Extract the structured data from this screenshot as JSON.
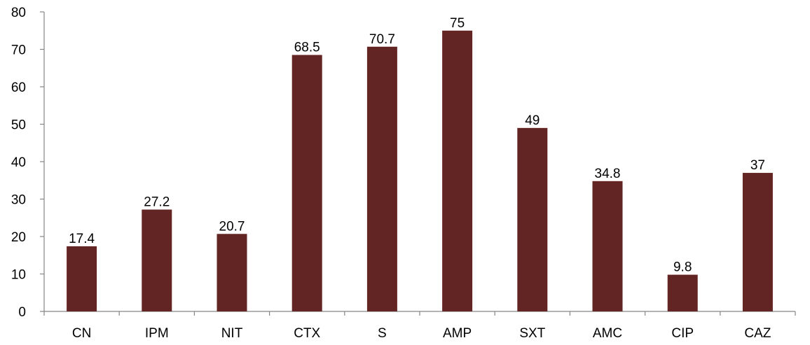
{
  "chart_data": {
    "type": "bar",
    "title": "",
    "xlabel": "",
    "ylabel": "",
    "categories": [
      "CN",
      "IPM",
      "NIT",
      "CTX",
      "S",
      "AMP",
      "SXT",
      "AMC",
      "CIP",
      "CAZ"
    ],
    "values": [
      17.4,
      27.2,
      20.7,
      68.5,
      70.7,
      75,
      49,
      34.8,
      9.8,
      37
    ],
    "value_labels": [
      "17.4",
      "27.2",
      "20.7",
      "68.5",
      "70.7",
      "75",
      "49",
      "34.8",
      "9.8",
      "37"
    ],
    "ylim": [
      0,
      80
    ],
    "yticks": [
      0,
      10,
      20,
      30,
      40,
      50,
      60,
      70,
      80
    ],
    "grid": false,
    "legend": "none",
    "bar_color": "#632523"
  }
}
